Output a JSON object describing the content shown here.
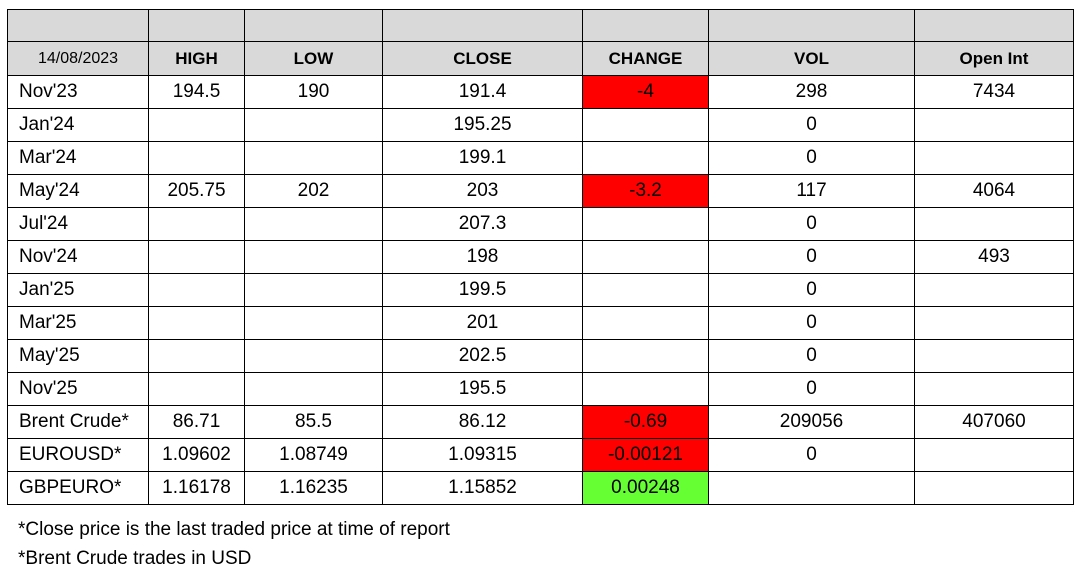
{
  "header": {
    "date": "14/08/2023",
    "columns": [
      "HIGH",
      "LOW",
      "CLOSE",
      "CHANGE",
      "VOL",
      "Open Int"
    ]
  },
  "rows": [
    {
      "label": "Nov'23",
      "high": "194.5",
      "low": "190",
      "close": "191.4",
      "change": "-4",
      "change_dir": "neg",
      "vol": "298",
      "open_int": "7434"
    },
    {
      "label": "Jan'24",
      "high": "",
      "low": "",
      "close": "195.25",
      "change": "",
      "change_dir": "",
      "vol": "0",
      "open_int": ""
    },
    {
      "label": "Mar'24",
      "high": "",
      "low": "",
      "close": "199.1",
      "change": "",
      "change_dir": "",
      "vol": "0",
      "open_int": ""
    },
    {
      "label": "May'24",
      "high": "205.75",
      "low": "202",
      "close": "203",
      "change": "-3.2",
      "change_dir": "neg",
      "vol": "117",
      "open_int": "4064"
    },
    {
      "label": "Jul'24",
      "high": "",
      "low": "",
      "close": "207.3",
      "change": "",
      "change_dir": "",
      "vol": "0",
      "open_int": ""
    },
    {
      "label": "Nov'24",
      "high": "",
      "low": "",
      "close": "198",
      "change": "",
      "change_dir": "",
      "vol": "0",
      "open_int": "493"
    },
    {
      "label": "Jan'25",
      "high": "",
      "low": "",
      "close": "199.5",
      "change": "",
      "change_dir": "",
      "vol": "0",
      "open_int": ""
    },
    {
      "label": "Mar'25",
      "high": "",
      "low": "",
      "close": "201",
      "change": "",
      "change_dir": "",
      "vol": "0",
      "open_int": ""
    },
    {
      "label": "May'25",
      "high": "",
      "low": "",
      "close": "202.5",
      "change": "",
      "change_dir": "",
      "vol": "0",
      "open_int": ""
    },
    {
      "label": "Nov'25",
      "high": "",
      "low": "",
      "close": "195.5",
      "change": "",
      "change_dir": "",
      "vol": "0",
      "open_int": ""
    },
    {
      "label": "Brent Crude*",
      "high": "86.71",
      "low": "85.5",
      "close": "86.12",
      "change": "-0.69",
      "change_dir": "neg",
      "vol": "209056",
      "open_int": "407060"
    },
    {
      "label": "EUROUSD*",
      "high": "1.09602",
      "low": "1.08749",
      "close": "1.09315",
      "change": "-0.00121",
      "change_dir": "neg",
      "vol": "0",
      "open_int": ""
    },
    {
      "label": "GBPEURO*",
      "high": "1.16178",
      "low": "1.16235",
      "close": "1.15852",
      "change": "0.00248",
      "change_dir": "pos",
      "vol": "",
      "open_int": ""
    }
  ],
  "colors": {
    "negative": "#ff0000",
    "positive": "#66ff33",
    "header_bg": "#d9d9d9"
  },
  "notes": [
    "*Close price is the last traded price at time of report",
    "*Brent Crude trades in USD"
  ]
}
